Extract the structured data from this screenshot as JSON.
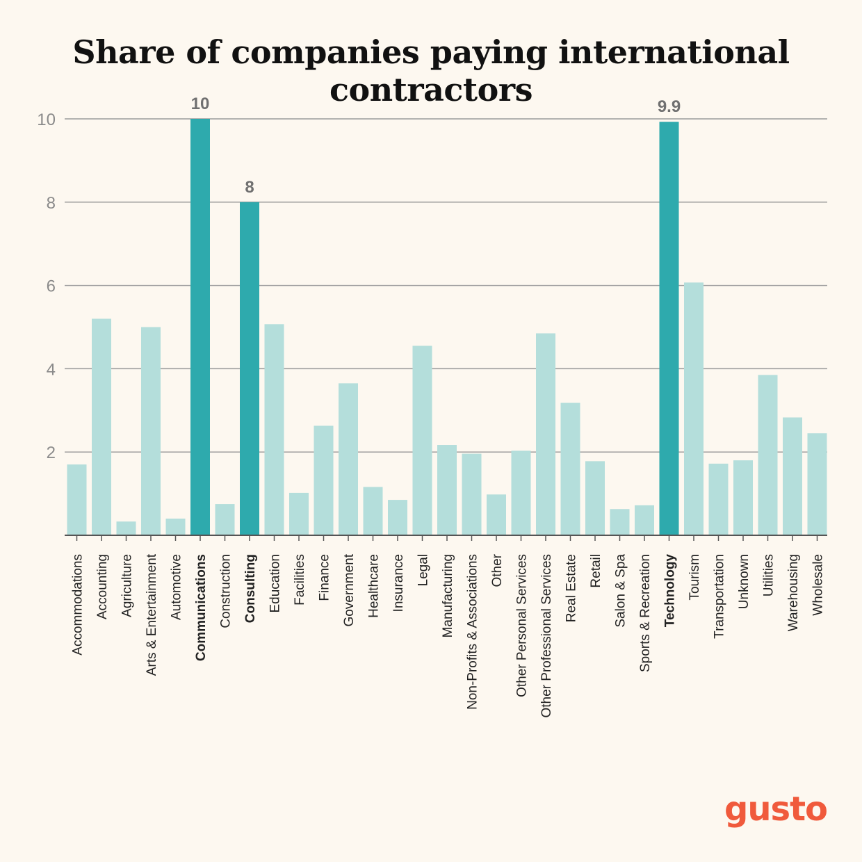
{
  "brand": {
    "logo_text": "gusto",
    "logo_color": "#f05a3c"
  },
  "colors": {
    "highlight": "#2eaaad",
    "normal": "#b4dedb",
    "grid": "#9a9a9a",
    "axis": "#555555"
  },
  "chart_data": {
    "type": "bar",
    "title": "Share of companies paying international contractors",
    "xlabel": "",
    "ylabel": "",
    "ylim": [
      0,
      10
    ],
    "yticks": [
      2,
      4,
      6,
      8,
      10
    ],
    "grid": true,
    "categories": [
      "Accommodations",
      "Accounting",
      "Agriculture",
      "Arts & Entertainment",
      "Automotive",
      "Communications",
      "Construction",
      "Consulting",
      "Education",
      "Facilities",
      "Finance",
      "Government",
      "Healthcare",
      "Insurance",
      "Legal",
      "Manufacturing",
      "Non-Profits & Associations",
      "Other",
      "Other Personal Services",
      "Other Professional Services",
      "Real Estate",
      "Retail",
      "Salon & Spa",
      "Sports & Recreation",
      "Technology",
      "Tourism",
      "Transportation",
      "Unknown",
      "Utilities",
      "Warehousing",
      "Wholesale"
    ],
    "values": [
      1.7,
      5.2,
      0.33,
      5.0,
      0.4,
      10,
      0.75,
      8,
      5.07,
      1.02,
      2.63,
      3.65,
      1.16,
      0.85,
      4.55,
      2.17,
      1.96,
      0.98,
      2.03,
      4.85,
      3.18,
      1.78,
      0.63,
      0.72,
      9.93,
      6.07,
      1.72,
      1.8,
      3.85,
      2.83,
      2.45
    ],
    "highlighted": [
      "Communications",
      "Consulting",
      "Technology"
    ],
    "data_labels": [
      {
        "category": "Communications",
        "text": "10"
      },
      {
        "category": "Consulting",
        "text": "8"
      },
      {
        "category": "Technology",
        "text": "9.9"
      }
    ]
  }
}
